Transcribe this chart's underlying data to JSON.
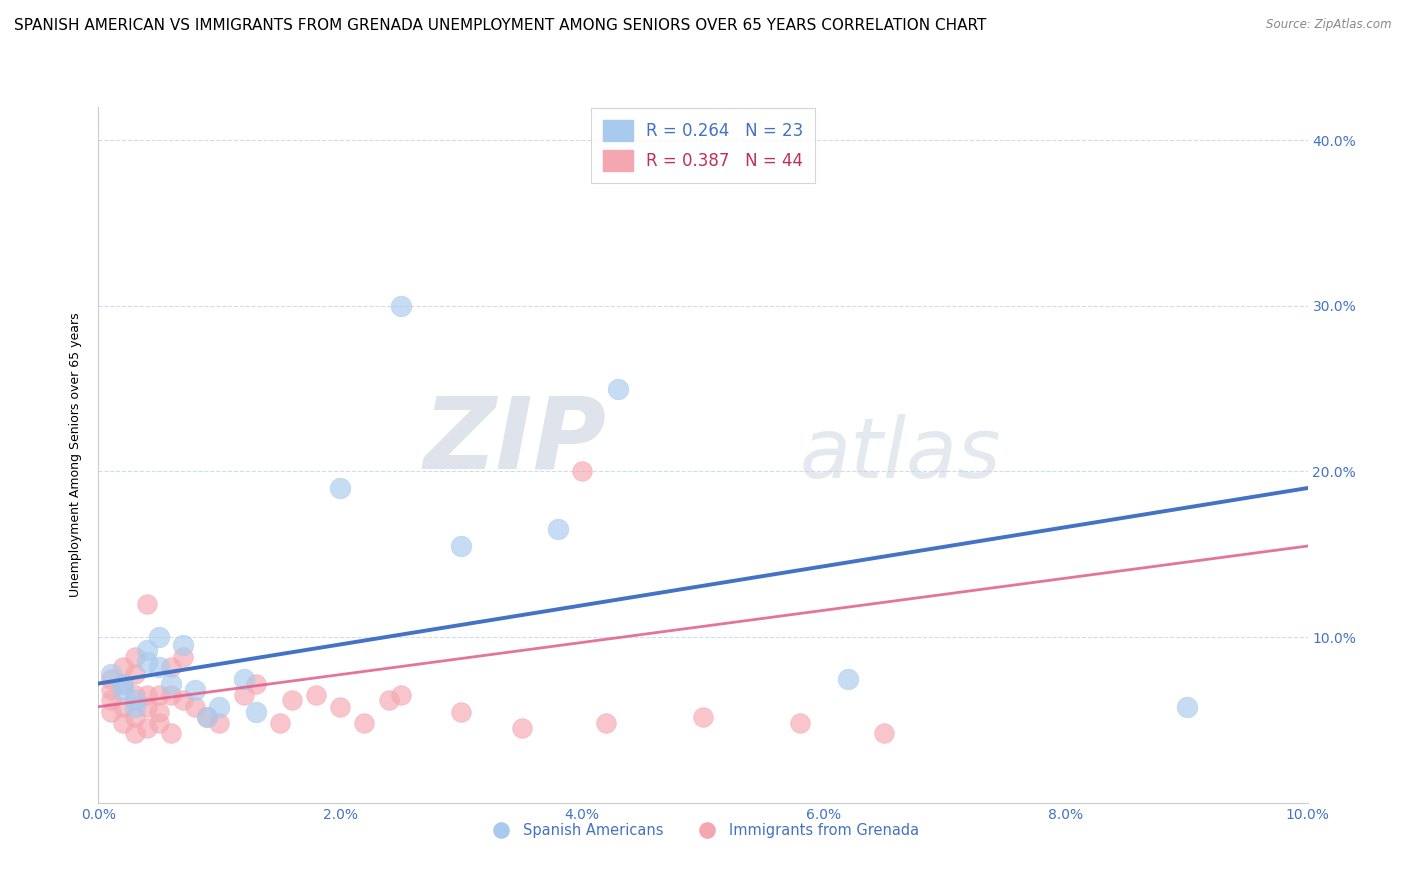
{
  "title": "SPANISH AMERICAN VS IMMIGRANTS FROM GRENADA UNEMPLOYMENT AMONG SENIORS OVER 65 YEARS CORRELATION CHART",
  "source": "Source: ZipAtlas.com",
  "ylabel": "Unemployment Among Seniors over 65 years",
  "xlabel": "",
  "legend_bottom": [
    "Spanish Americans",
    "Immigrants from Grenada"
  ],
  "legend_r_blue": "R = 0.264",
  "legend_n_blue": "N = 23",
  "legend_r_pink": "R = 0.387",
  "legend_n_pink": "N = 44",
  "xlim": [
    0.0,
    0.1
  ],
  "ylim": [
    0.0,
    0.42
  ],
  "xticks": [
    0.0,
    0.02,
    0.04,
    0.06,
    0.08,
    0.1
  ],
  "yticks": [
    0.0,
    0.1,
    0.2,
    0.3,
    0.4
  ],
  "blue_color": "#a8caed",
  "pink_color": "#f4a7b0",
  "blue_line_color": "#4472c4",
  "pink_line_color": "#e05c8a",
  "blue_scatter": [
    [
      0.001,
      0.078
    ],
    [
      0.002,
      0.072
    ],
    [
      0.002,
      0.068
    ],
    [
      0.003,
      0.062
    ],
    [
      0.003,
      0.058
    ],
    [
      0.004,
      0.092
    ],
    [
      0.004,
      0.085
    ],
    [
      0.005,
      0.1
    ],
    [
      0.005,
      0.082
    ],
    [
      0.006,
      0.072
    ],
    [
      0.007,
      0.095
    ],
    [
      0.008,
      0.068
    ],
    [
      0.009,
      0.052
    ],
    [
      0.01,
      0.058
    ],
    [
      0.012,
      0.075
    ],
    [
      0.013,
      0.055
    ],
    [
      0.02,
      0.19
    ],
    [
      0.025,
      0.3
    ],
    [
      0.03,
      0.155
    ],
    [
      0.038,
      0.165
    ],
    [
      0.043,
      0.25
    ],
    [
      0.062,
      0.075
    ],
    [
      0.09,
      0.058
    ]
  ],
  "pink_scatter": [
    [
      0.001,
      0.068
    ],
    [
      0.001,
      0.075
    ],
    [
      0.001,
      0.062
    ],
    [
      0.001,
      0.055
    ],
    [
      0.002,
      0.058
    ],
    [
      0.002,
      0.072
    ],
    [
      0.002,
      0.082
    ],
    [
      0.002,
      0.048
    ],
    [
      0.003,
      0.088
    ],
    [
      0.003,
      0.065
    ],
    [
      0.003,
      0.078
    ],
    [
      0.003,
      0.052
    ],
    [
      0.003,
      0.042
    ],
    [
      0.004,
      0.12
    ],
    [
      0.004,
      0.065
    ],
    [
      0.004,
      0.058
    ],
    [
      0.004,
      0.045
    ],
    [
      0.005,
      0.065
    ],
    [
      0.005,
      0.055
    ],
    [
      0.005,
      0.048
    ],
    [
      0.006,
      0.082
    ],
    [
      0.006,
      0.065
    ],
    [
      0.006,
      0.042
    ],
    [
      0.007,
      0.088
    ],
    [
      0.007,
      0.062
    ],
    [
      0.008,
      0.058
    ],
    [
      0.009,
      0.052
    ],
    [
      0.01,
      0.048
    ],
    [
      0.012,
      0.065
    ],
    [
      0.013,
      0.072
    ],
    [
      0.015,
      0.048
    ],
    [
      0.016,
      0.062
    ],
    [
      0.018,
      0.065
    ],
    [
      0.02,
      0.058
    ],
    [
      0.022,
      0.048
    ],
    [
      0.024,
      0.062
    ],
    [
      0.025,
      0.065
    ],
    [
      0.03,
      0.055
    ],
    [
      0.035,
      0.045
    ],
    [
      0.04,
      0.2
    ],
    [
      0.042,
      0.048
    ],
    [
      0.05,
      0.052
    ],
    [
      0.058,
      0.048
    ],
    [
      0.065,
      0.042
    ]
  ],
  "blue_trendline_x": [
    0.0,
    0.1
  ],
  "blue_trendline_y": [
    0.072,
    0.19
  ],
  "pink_trendline_x": [
    0.0,
    0.1
  ],
  "pink_trendline_y": [
    0.058,
    0.155
  ],
  "watermark_zip": "ZIP",
  "watermark_atlas": "atlas",
  "background_color": "#ffffff",
  "grid_color": "#d0dce8",
  "title_fontsize": 11,
  "axis_label_fontsize": 9,
  "tick_fontsize": 10
}
